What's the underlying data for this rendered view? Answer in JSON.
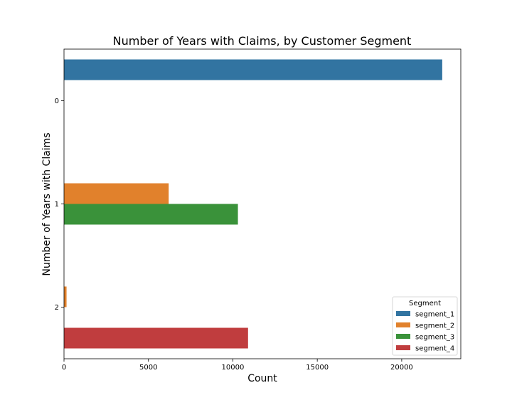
{
  "chart_data": {
    "type": "bar",
    "orientation": "horizontal",
    "title": "Number of Years with Claims, by Customer Segment",
    "xlabel": "Count",
    "ylabel": "Number of Years with Claims",
    "categories": [
      "0",
      "1",
      "2"
    ],
    "xlim": [
      0,
      23500
    ],
    "xticks": [
      0,
      5000,
      10000,
      15000,
      20000
    ],
    "series": [
      {
        "name": "segment_1",
        "color": "#3274a1",
        "values": [
          22400,
          null,
          null
        ]
      },
      {
        "name": "segment_2",
        "color": "#e1812c",
        "values": [
          null,
          6200,
          150
        ]
      },
      {
        "name": "segment_3",
        "color": "#3a923a",
        "values": [
          null,
          10300,
          null
        ]
      },
      {
        "name": "segment_4",
        "color": "#c03d3e",
        "values": [
          null,
          null,
          10900
        ]
      }
    ],
    "legend": {
      "title": "Segment",
      "position": "lower-right"
    },
    "grid": false
  }
}
